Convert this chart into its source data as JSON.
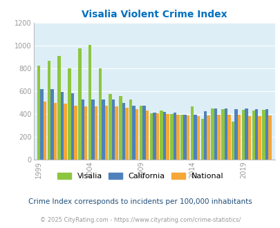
{
  "title": "Visalia Violent Crime Index",
  "subtitle": "Crime Index corresponds to incidents per 100,000 inhabitants",
  "footer": "© 2025 CityRating.com - https://www.cityrating.com/crime-statistics/",
  "years": [
    1999,
    2000,
    2001,
    2002,
    2003,
    2004,
    2005,
    2006,
    2007,
    2008,
    2009,
    2010,
    2011,
    2012,
    2013,
    2014,
    2015,
    2016,
    2017,
    2018,
    2019,
    2020,
    2021
  ],
  "visalia": [
    825,
    865,
    910,
    800,
    975,
    1005,
    800,
    575,
    555,
    530,
    470,
    405,
    430,
    400,
    395,
    465,
    360,
    450,
    445,
    335,
    435,
    430,
    435
  ],
  "california": [
    620,
    620,
    595,
    580,
    525,
    530,
    530,
    525,
    500,
    475,
    470,
    410,
    420,
    410,
    395,
    395,
    425,
    450,
    450,
    445,
    450,
    445,
    445
  ],
  "national": [
    510,
    495,
    490,
    475,
    465,
    465,
    470,
    465,
    455,
    440,
    430,
    405,
    400,
    395,
    385,
    380,
    385,
    395,
    395,
    395,
    380,
    380,
    385
  ],
  "visalia_color": "#8dc63f",
  "california_color": "#4f81bd",
  "national_color": "#f6a735",
  "background_color": "#ddeef6",
  "title_color": "#0070c0",
  "tick_label_color": "#999999",
  "subtitle_color": "#1f4e79",
  "footer_color": "#999999",
  "ylim": [
    0,
    1200
  ],
  "yticks": [
    0,
    200,
    400,
    600,
    800,
    1000,
    1200
  ],
  "xlabel_ticks": [
    1999,
    2004,
    2009,
    2014,
    2019
  ],
  "bar_width": 0.3
}
